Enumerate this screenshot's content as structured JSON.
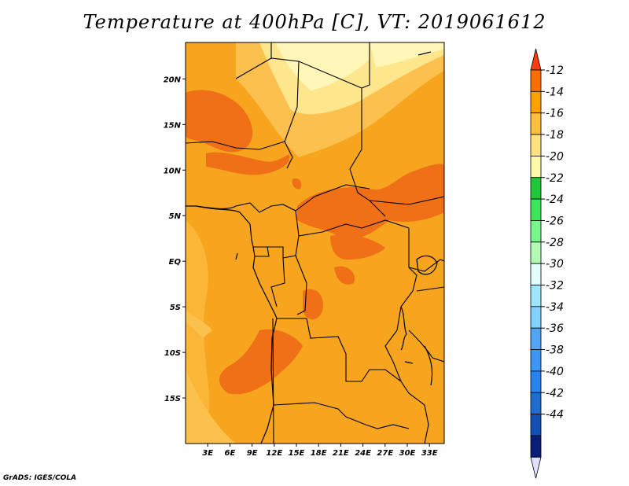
{
  "title": "Temperature at 400hPa [C], VT: 2019061612",
  "credit": "GrADS: IGES/COLA",
  "map": {
    "lon_range": [
      0,
      35
    ],
    "lat_range": [
      -20,
      24
    ],
    "lat_ticks": [
      {
        "value": 20,
        "label": "20N"
      },
      {
        "value": 15,
        "label": "15N"
      },
      {
        "value": 10,
        "label": "10N"
      },
      {
        "value": 5,
        "label": "5N"
      },
      {
        "value": 0,
        "label": "EQ"
      },
      {
        "value": -5,
        "label": "5S"
      },
      {
        "value": -10,
        "label": "10S"
      },
      {
        "value": -15,
        "label": "15S"
      }
    ],
    "lon_ticks": [
      {
        "value": 3,
        "label": "3E"
      },
      {
        "value": 6,
        "label": "6E"
      },
      {
        "value": 9,
        "label": "9E"
      },
      {
        "value": 12,
        "label": "12E"
      },
      {
        "value": 15,
        "label": "15E"
      },
      {
        "value": 18,
        "label": "18E"
      },
      {
        "value": 21,
        "label": "21E"
      },
      {
        "value": 24,
        "label": "24E"
      },
      {
        "value": 27,
        "label": "27E"
      },
      {
        "value": 30,
        "label": "30E"
      },
      {
        "value": 33,
        "label": "33E"
      }
    ]
  },
  "colorbar": {
    "labels": [
      "-12",
      "-14",
      "-16",
      "-18",
      "-20",
      "-22",
      "-24",
      "-26",
      "-28",
      "-30",
      "-32",
      "-34",
      "-36",
      "-38",
      "-40",
      "-42",
      "-44"
    ],
    "colors": [
      "#fa3c0f",
      "#ff6e00",
      "#ffa000",
      "#ffbe3c",
      "#ffe17d",
      "#fffaaa",
      "#1ec837",
      "#3ce65a",
      "#78f58c",
      "#b4fab4",
      "#e1ffff",
      "#a0e6ff",
      "#82d2ff",
      "#50a5f5",
      "#3c96f5",
      "#2882f0",
      "#1e6ed2",
      "#1450b4",
      "#0a1e78",
      "#e1e1ff"
    ]
  },
  "colors": {
    "background": "#f5a623",
    "warm": "#f07017",
    "cool_light": "#fbc04d",
    "cool_lighter": "#fde68c",
    "cool_lightest": "#fff6b8"
  }
}
